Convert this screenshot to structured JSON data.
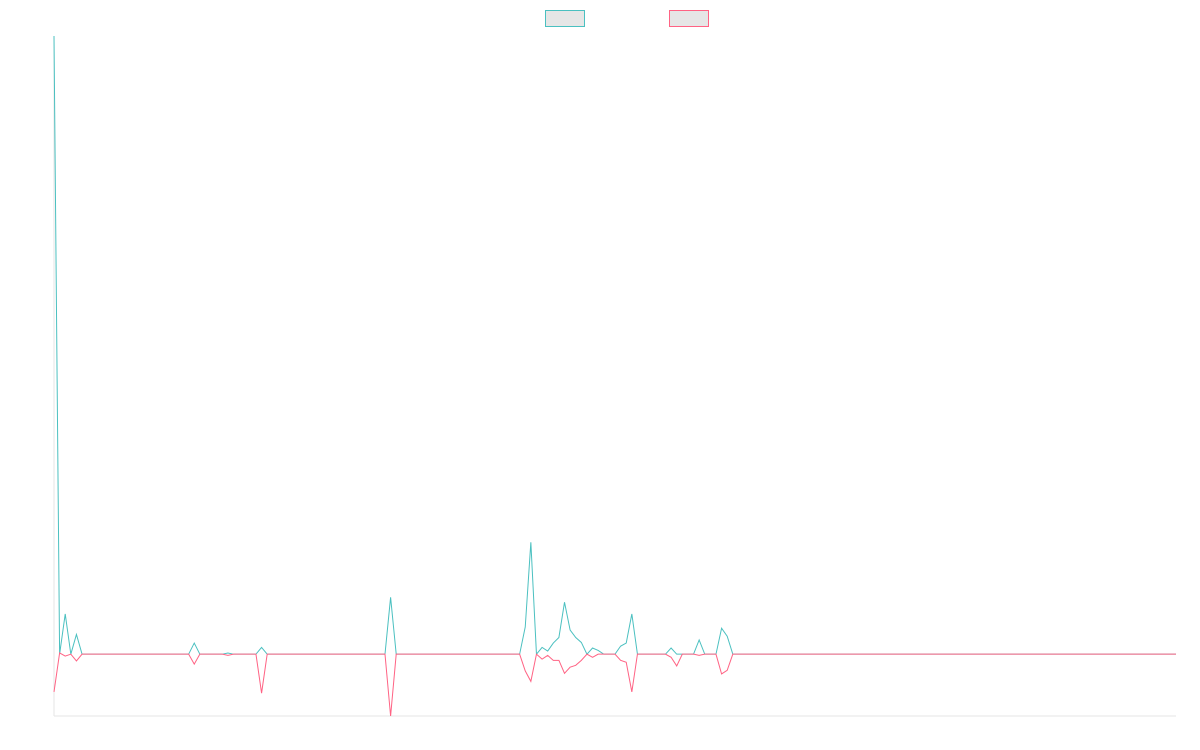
{
  "chart_data": {
    "type": "line",
    "legend": "top",
    "grid": false,
    "legend_fill": "#e6e6e6",
    "ylim": [
      -10,
      100
    ],
    "series": [
      {
        "color": "#4bc0c0",
        "values": [
          100,
          0,
          6.5,
          0,
          3.2,
          0,
          0,
          0,
          0,
          0,
          0,
          0,
          0,
          0,
          0,
          0,
          0,
          0,
          0,
          0,
          0,
          0,
          0,
          0,
          0,
          1.8,
          0,
          0,
          0,
          0,
          0,
          0.2,
          0,
          0,
          0,
          0,
          0,
          1.1,
          0,
          0,
          0,
          0,
          0,
          0,
          0,
          0,
          0,
          0,
          0,
          0,
          0,
          0,
          0,
          0,
          0,
          0,
          0,
          0,
          0,
          0,
          9.2,
          0,
          0,
          0,
          0,
          0,
          0,
          0,
          0,
          0,
          0,
          0,
          0,
          0,
          0,
          0,
          0,
          0,
          0,
          0,
          0,
          0,
          0,
          0,
          4.4,
          18.1,
          0,
          1.1,
          0.5,
          1.8,
          2.7,
          8.4,
          3.9,
          2.7,
          1.9,
          0,
          1,
          0.6,
          0,
          0,
          0,
          1.3,
          1.8,
          6.5,
          0,
          0,
          0,
          0,
          0,
          0,
          1,
          0,
          0,
          0,
          0,
          2.3,
          0,
          0,
          0,
          4.2,
          2.9,
          0,
          0,
          0,
          0,
          0,
          0,
          0,
          0,
          0,
          0,
          0,
          0,
          0,
          0,
          0,
          0,
          0,
          0,
          0,
          0,
          0,
          0,
          0,
          0,
          0,
          0,
          0,
          0,
          0,
          0,
          0,
          0,
          0,
          0,
          0,
          0,
          0,
          0,
          0,
          0,
          0,
          0,
          0,
          0,
          0,
          0,
          0,
          0,
          0,
          0,
          0,
          0,
          0,
          0,
          0,
          0,
          0,
          0,
          0,
          0,
          0,
          0,
          0,
          0,
          0,
          0,
          0,
          0,
          0,
          0,
          0,
          0,
          0,
          0,
          0,
          0,
          0,
          0,
          0,
          0
        ]
      },
      {
        "color": "#ff6384",
        "values": [
          -6.1,
          0.2,
          -0.3,
          0,
          -1.1,
          0,
          0,
          0,
          0,
          0,
          0,
          0,
          0,
          0,
          0,
          0,
          0,
          0,
          0,
          0,
          0,
          0,
          0,
          0,
          0,
          -1.6,
          0,
          0,
          0,
          0,
          0,
          -0.2,
          0,
          0,
          0,
          0,
          0,
          -6.3,
          0,
          0,
          0,
          0,
          0,
          0,
          0,
          0,
          0,
          0,
          0,
          0,
          0,
          0,
          0,
          0,
          0,
          0,
          0,
          0,
          0,
          0,
          -10,
          0,
          0,
          0,
          0,
          0,
          0,
          0,
          0,
          0,
          0,
          0,
          0,
          0,
          0,
          0,
          0,
          0,
          0,
          0,
          0,
          0,
          0,
          0,
          -2.7,
          -4.4,
          0,
          -0.8,
          -0.2,
          -1,
          -1,
          -3.1,
          -2.1,
          -1.8,
          -1,
          0,
          -0.5,
          0,
          0,
          0,
          0,
          -1,
          -1.3,
          -6.1,
          0,
          0,
          0,
          0,
          0,
          0,
          -0.5,
          -1.9,
          0,
          0,
          0,
          -0.2,
          0,
          0,
          0,
          -3.2,
          -2.6,
          0,
          0,
          0,
          0,
          0,
          0,
          0,
          0,
          0,
          0,
          0,
          0,
          0,
          0,
          0,
          0,
          0,
          0,
          0,
          0,
          0,
          0,
          0,
          0,
          0,
          0,
          0,
          0,
          0,
          0,
          0,
          0,
          0,
          0,
          0,
          0,
          0,
          0,
          0,
          0,
          0,
          0,
          0,
          0,
          0,
          0,
          0,
          0,
          0,
          0,
          0,
          0,
          0,
          0,
          0,
          0,
          0,
          0,
          0,
          0,
          0,
          0,
          0,
          0,
          0,
          0,
          0,
          0,
          0,
          0,
          0,
          0,
          0,
          0,
          0,
          0,
          0,
          0,
          0,
          0
        ]
      }
    ]
  }
}
